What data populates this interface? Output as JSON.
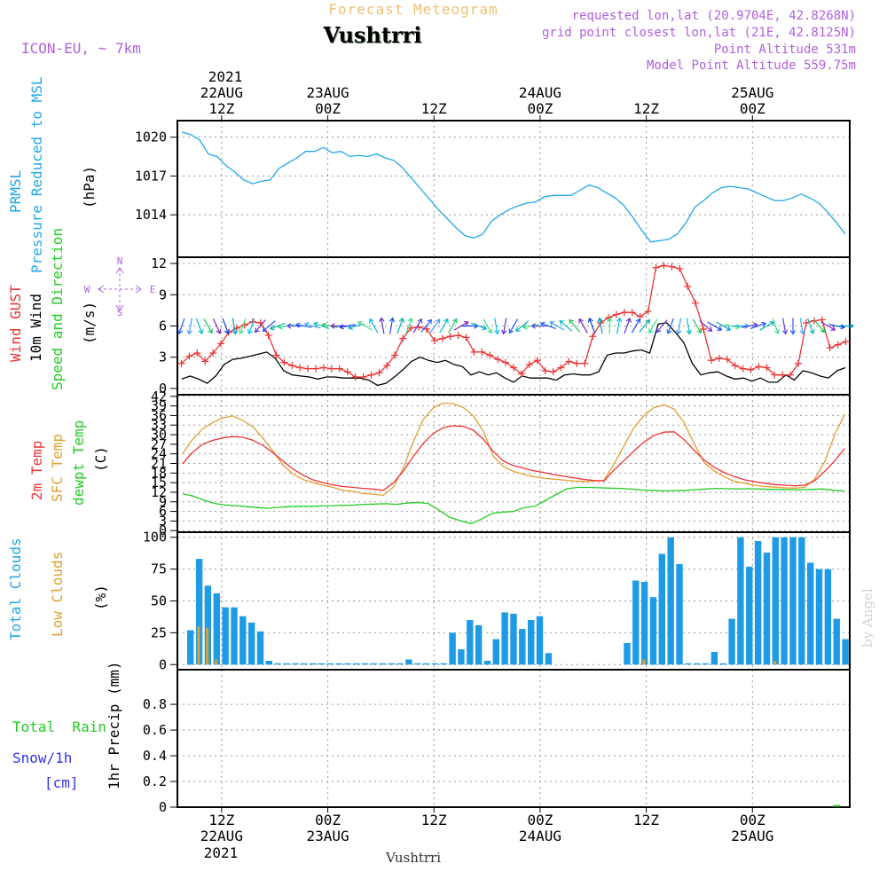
{
  "header": {
    "subtitle": "Forecast Meteogram",
    "title": "Vushtrri",
    "model": "ICON-EU, ~ 7km",
    "info_lines": [
      "requested lon,lat (20.9704E, 42.8268N)",
      "grid point closest lon,lat (21E, 42.8125N)",
      "Point Altitude 531m",
      "Model Point Altitude 559.75m"
    ],
    "footer_name": "Vushtrri",
    "watermark": "by Angel"
  },
  "time_axis": {
    "top_year": "2021",
    "bottom_year": "2021",
    "labels": [
      {
        "hour": 12,
        "l1": "22AUG",
        "l2": "12Z"
      },
      {
        "hour": 24,
        "l1": "23AUG",
        "l2": "00Z"
      },
      {
        "hour": 36,
        "l1": "",
        "l2": "12Z"
      },
      {
        "hour": 48,
        "l1": "24AUG",
        "l2": "00Z"
      },
      {
        "hour": 60,
        "l1": "",
        "l2": "12Z"
      },
      {
        "hour": 72,
        "l1": "25AUG",
        "l2": "00Z"
      }
    ],
    "start_hour": 7,
    "end_hour": 83
  },
  "colors": {
    "pressure": "#22a7e8",
    "gust": "#ee3333",
    "wind": "#000000",
    "winddir": "#22cc22",
    "temp": "#ee3333",
    "sfc": "#e0a030",
    "dewpt": "#22cc22",
    "clouds": "#1e9be5",
    "lowclouds": "#e0a030",
    "rain": "#22cc22",
    "snow": "#3333ee",
    "header_purple": "#b060e0",
    "header_orange": "#f0c070"
  },
  "chart_data": [
    {
      "type": "line",
      "id": "pressure",
      "ylabel_lines": [
        "PRMSL",
        "Pressure Reduced to MSL"
      ],
      "unit": "(hPa)",
      "yticks": [
        1014,
        1017,
        1020
      ],
      "ylim": [
        1011.2,
        1020.8
      ],
      "series": [
        {
          "values": [
            1020.4,
            1020.2,
            1019.8,
            1018.7,
            1018.5,
            1017.8,
            1017.3,
            1016.7,
            1016.4,
            1016.6,
            1016.7,
            1017.6,
            1018.0,
            1018.4,
            1018.9,
            1018.9,
            1019.2,
            1018.8,
            1018.9,
            1018.5,
            1018.6,
            1018.5,
            1018.7,
            1018.4,
            1018.2,
            1017.6,
            1016.8,
            1016.0,
            1015.2,
            1014.4,
            1013.7,
            1013.0,
            1012.4,
            1012.2,
            1012.5,
            1013.5,
            1014.0,
            1014.4,
            1014.7,
            1014.9,
            1015.0,
            1015.4,
            1015.5,
            1015.5,
            1015.5,
            1015.9,
            1016.3,
            1016.1,
            1015.7,
            1015.3,
            1014.7,
            1013.8,
            1012.8,
            1011.9,
            1012.0,
            1012.1,
            1012.5,
            1013.4,
            1014.6,
            1015.1,
            1015.7,
            1016.1,
            1016.2,
            1016.1,
            1016.0,
            1015.7,
            1015.4,
            1015.1,
            1015.1,
            1015.3,
            1015.6,
            1015.3,
            1014.9,
            1014.2,
            1013.4,
            1012.5
          ]
        }
      ]
    },
    {
      "type": "line",
      "id": "wind",
      "ylabel_lines": [
        "Wind GUST",
        "10m Wind",
        "Speed and Direction"
      ],
      "unit": "(m/s)",
      "compass": {
        "n": "N",
        "s": "S",
        "w": "W",
        "e": "E"
      },
      "yticks": [
        0,
        3,
        6,
        9,
        12
      ],
      "ylim": [
        -0.6,
        12.6
      ],
      "gust": [
        2.4,
        3.1,
        3.4,
        2.6,
        3.4,
        4.3,
        5.4,
        5.8,
        6.1,
        6.4,
        6.3,
        5.1,
        3.2,
        2.5,
        2.2,
        2.0,
        1.9,
        1.9,
        2.0,
        1.9,
        1.9,
        1.6,
        1.1,
        1.1,
        1.3,
        1.5,
        2.2,
        3.2,
        4.8,
        5.8,
        5.9,
        5.7,
        4.6,
        4.8,
        5.0,
        5.1,
        4.9,
        3.5,
        3.5,
        3.2,
        2.8,
        2.5,
        2.0,
        1.4,
        2.3,
        2.7,
        1.7,
        1.6,
        2.0,
        2.6,
        2.4,
        2.4,
        5.0,
        6.3,
        6.8,
        7.1,
        7.3,
        7.3,
        6.9,
        7.4,
        11.6,
        11.8,
        11.7,
        11.5,
        9.8,
        8.2,
        5.7,
        2.7,
        2.9,
        2.8,
        2.2,
        1.9,
        1.8,
        2.1,
        2.0,
        1.3,
        1.3,
        1.3,
        2.4,
        6.3,
        6.5,
        6.6,
        3.9,
        4.2,
        4.5
      ],
      "wind": [
        0.9,
        1.2,
        0.9,
        0.5,
        1.2,
        2.3,
        2.8,
        2.9,
        3.1,
        3.3,
        3.5,
        2.9,
        1.7,
        1.3,
        1.2,
        1.1,
        0.9,
        1.1,
        1.1,
        1.0,
        1.0,
        1.0,
        0.8,
        0.3,
        0.5,
        1.1,
        1.8,
        2.6,
        3.0,
        2.7,
        2.5,
        2.7,
        2.3,
        2.1,
        1.3,
        1.6,
        1.3,
        1.5,
        1.0,
        0.6,
        1.2,
        1.0,
        1.0,
        1.0,
        0.8,
        1.3,
        1.4,
        1.3,
        1.3,
        1.6,
        3.2,
        3.4,
        3.4,
        3.6,
        3.7,
        3.4,
        6.2,
        6.3,
        5.4,
        4.4,
        2.4,
        1.3,
        1.5,
        1.6,
        1.2,
        0.9,
        1.0,
        0.7,
        1.0,
        0.6,
        0.6,
        1.3,
        0.8,
        1.7,
        1.5,
        1.2,
        1.0,
        1.7,
        2.0
      ],
      "wind_arrow_angles_deg": [
        200,
        190,
        160,
        150,
        155,
        160,
        170,
        200,
        200,
        220,
        230,
        250,
        260,
        270,
        280,
        285,
        290,
        280,
        270,
        260,
        255,
        300,
        330,
        350,
        10,
        20,
        20,
        30,
        40,
        35,
        30,
        30,
        60,
        90,
        110,
        150,
        170,
        190,
        210,
        230,
        260,
        270,
        290,
        300,
        310,
        320,
        330,
        340,
        350,
        0,
        10,
        20,
        30,
        40,
        210,
        220,
        200,
        190,
        170,
        150,
        130,
        120,
        120,
        100,
        90,
        80,
        70,
        60,
        160,
        170,
        180,
        170,
        160,
        140,
        120,
        100,
        90
      ],
      "wind_arrow_colors": [
        "#2060ff",
        "#40a0ff",
        "#00c0c0",
        "#20c060",
        "#8020c0",
        "#1040e0",
        "#00a0d0",
        "#40e080",
        "#00c0ff",
        "#6030d0",
        "#2050ff",
        "#00b0b0",
        "#30e090",
        "#6040e0"
      ]
    },
    {
      "type": "line",
      "id": "temperature",
      "ylabel_lines": [
        "2m Temp",
        "SFC Temp",
        "dewpt Temp"
      ],
      "unit": "(C)",
      "yticks": [
        0,
        3,
        6,
        9,
        12,
        15,
        18,
        21,
        24,
        27,
        30,
        33,
        36,
        39,
        42
      ],
      "ylim": [
        -0.5,
        42.5
      ],
      "series": [
        {
          "name": "2m Temp",
          "values": [
            20.9,
            24.5,
            27.0,
            28.2,
            29.0,
            29.4,
            29.2,
            28.3,
            26.7,
            24.4,
            21.8,
            19.3,
            17.4,
            15.9,
            15.0,
            14.3,
            13.8,
            13.5,
            13.2,
            13.0,
            12.6,
            14.8,
            18.6,
            23.1,
            27.3,
            30.4,
            32.2,
            32.8,
            32.6,
            31.4,
            28.5,
            24.7,
            21.7,
            20.3,
            19.5,
            18.7,
            18.2,
            17.5,
            17.0,
            16.5,
            16.0,
            15.7,
            15.5,
            18.9,
            21.9,
            24.9,
            27.7,
            29.8,
            30.8,
            30.9,
            28.4,
            25.1,
            22.0,
            19.8,
            18.1,
            16.9,
            15.9,
            15.3,
            14.8,
            14.4,
            14.2,
            14.0,
            14.2,
            15.6,
            18.5,
            21.8,
            25.7
          ]
        },
        {
          "name": "SFC Temp",
          "values": [
            24.0,
            28.5,
            31.8,
            33.8,
            35.2,
            35.9,
            34.5,
            32.5,
            29.0,
            25.0,
            20.6,
            17.7,
            16.0,
            15.0,
            14.2,
            13.5,
            12.6,
            12.3,
            11.6,
            11.4,
            11.0,
            13.5,
            19.5,
            27.8,
            34.8,
            38.4,
            39.9,
            39.7,
            38.5,
            35.9,
            31.0,
            23.2,
            20.0,
            18.5,
            17.6,
            16.9,
            16.4,
            16.1,
            15.8,
            15.5,
            15.4,
            15.5,
            15.7,
            20.8,
            26.5,
            32.2,
            36.0,
            38.5,
            39.3,
            38.0,
            33.8,
            27.2,
            21.2,
            18.7,
            16.8,
            15.4,
            14.8,
            14.2,
            13.8,
            13.6,
            13.4,
            13.3,
            13.5,
            16.1,
            21.6,
            30.0,
            36.3
          ]
        },
        {
          "name": "dewpt Temp",
          "values": [
            11.5,
            10.8,
            9.5,
            8.5,
            8.0,
            7.8,
            7.5,
            7.2,
            7.0,
            7.3,
            7.5,
            7.6,
            7.6,
            7.7,
            7.8,
            7.9,
            8.0,
            8.2,
            8.3,
            8.4,
            8.2,
            8.6,
            8.8,
            8.5,
            6.4,
            4.2,
            3.1,
            2.2,
            3.6,
            5.4,
            5.8,
            6.0,
            7.2,
            7.6,
            9.5,
            11.3,
            13.1,
            13.5,
            13.5,
            13.4,
            13.3,
            13.2,
            13.0,
            12.7,
            12.6,
            12.4,
            12.5,
            12.6,
            12.8,
            13.0,
            13.2,
            13.1,
            13.0,
            13.1,
            13.0,
            12.9,
            12.9,
            12.8,
            12.8,
            12.9,
            13.0,
            12.6,
            12.4
          ]
        }
      ]
    },
    {
      "type": "bar",
      "id": "clouds",
      "ylabel_lines": [
        "Total Clouds",
        "Low Clouds"
      ],
      "unit": "(%)",
      "yticks": [
        0,
        25,
        50,
        75,
        100
      ],
      "ylim": [
        -4,
        104
      ],
      "series": [
        {
          "name": "Total Clouds",
          "values": [
            0,
            27,
            83,
            62,
            56,
            45,
            45,
            38,
            33,
            26,
            3,
            1,
            1,
            1,
            1,
            1,
            1,
            1,
            1,
            1,
            1,
            1,
            1,
            1,
            1,
            1,
            4,
            1,
            1,
            1,
            1,
            25,
            12,
            35,
            31,
            3,
            20,
            41,
            40,
            28,
            35,
            38,
            9,
            0,
            0,
            0,
            0,
            0,
            0,
            0,
            0,
            17,
            66,
            65,
            53,
            87,
            100,
            79,
            1,
            1,
            1,
            10,
            1,
            36,
            100,
            77,
            97,
            88,
            100,
            100,
            100,
            100,
            80,
            75,
            75,
            36,
            20
          ]
        },
        {
          "name": "Low Clouds",
          "values": [
            0,
            0,
            30,
            29,
            4,
            0,
            0,
            0,
            0,
            0,
            0,
            0,
            0,
            0,
            0,
            0,
            0,
            0,
            0,
            0,
            0,
            0,
            0,
            0,
            0,
            0,
            0,
            0,
            0,
            0,
            0,
            0,
            0,
            0,
            0,
            0,
            0,
            0,
            0,
            0,
            0,
            0,
            0,
            0,
            0,
            0,
            0,
            0,
            0,
            0,
            0,
            0,
            0,
            4,
            0,
            0,
            0,
            0,
            0,
            0,
            0,
            0,
            0,
            0,
            0,
            0,
            0,
            0,
            3,
            0,
            0,
            0,
            0,
            0,
            0,
            0,
            0
          ]
        }
      ]
    },
    {
      "type": "bar",
      "id": "precip",
      "ylabel_lines": [
        "1hr Precip (mm)"
      ],
      "legend": {
        "rain": "Total  Rain",
        "snow": "Snow/1h",
        "snow_unit": "[cm]"
      },
      "yticks": [
        0,
        0.2,
        0.4,
        0.6,
        0.8
      ],
      "ytick_labels": [
        "0",
        "0.2",
        "0.4",
        "0.6",
        "0.8"
      ],
      "ylim": [
        0,
        0.98
      ],
      "series": [
        {
          "name": "Total Rain",
          "values": [
            0,
            0,
            0,
            0,
            0,
            0,
            0,
            0,
            0,
            0,
            0,
            0,
            0,
            0,
            0,
            0,
            0,
            0,
            0,
            0,
            0,
            0,
            0,
            0,
            0,
            0,
            0,
            0,
            0,
            0,
            0,
            0,
            0,
            0,
            0,
            0,
            0,
            0,
            0,
            0,
            0,
            0,
            0,
            0,
            0,
            0,
            0,
            0,
            0,
            0,
            0,
            0,
            0,
            0,
            0,
            0,
            0,
            0,
            0,
            0,
            0,
            0,
            0,
            0,
            0,
            0,
            0,
            0,
            0,
            0,
            0,
            0,
            0,
            0,
            0,
            0.01,
            0
          ]
        }
      ]
    }
  ]
}
